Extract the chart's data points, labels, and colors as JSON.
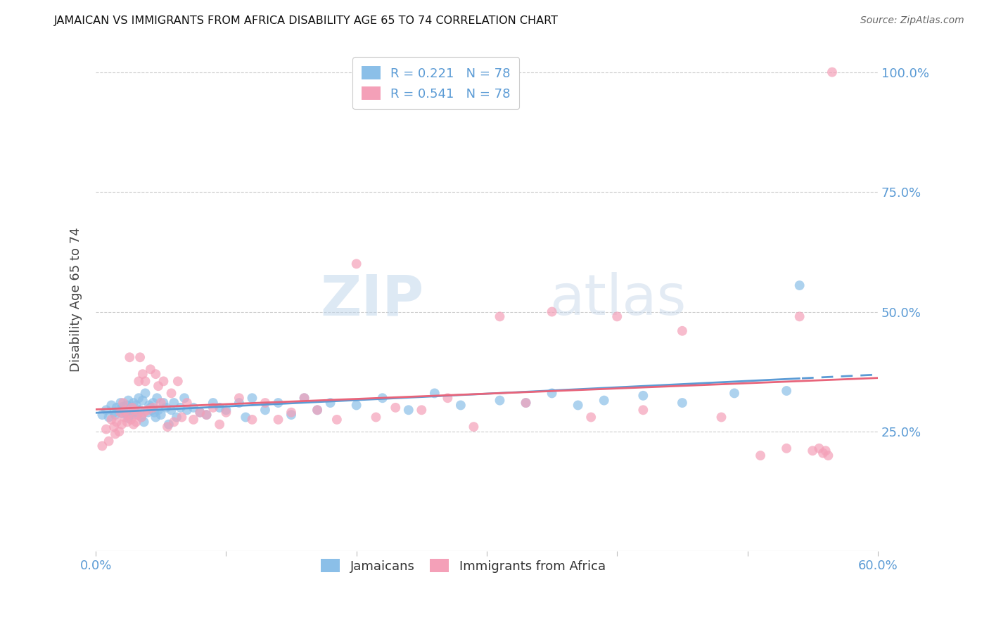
{
  "title": "JAMAICAN VS IMMIGRANTS FROM AFRICA DISABILITY AGE 65 TO 74 CORRELATION CHART",
  "source": "Source: ZipAtlas.com",
  "ylabel_label": "Disability Age 65 to 74",
  "x_min": 0.0,
  "x_max": 0.6,
  "y_min": 0.0,
  "y_max": 1.05,
  "x_ticks": [
    0.0,
    0.1,
    0.2,
    0.3,
    0.4,
    0.5,
    0.6
  ],
  "x_tick_labels": [
    "0.0%",
    "",
    "",
    "",
    "",
    "",
    "60.0%"
  ],
  "y_ticks": [
    0.25,
    0.5,
    0.75,
    1.0
  ],
  "y_tick_labels": [
    "25.0%",
    "50.0%",
    "75.0%",
    "100.0%"
  ],
  "blue_color": "#8BBFE8",
  "pink_color": "#F4A0B8",
  "blue_line_color": "#5B9BD5",
  "pink_line_color": "#E8647A",
  "watermark_zip": "ZIP",
  "watermark_atlas": "atlas",
  "blue_scatter_x": [
    0.005,
    0.008,
    0.01,
    0.012,
    0.014,
    0.015,
    0.016,
    0.018,
    0.019,
    0.02,
    0.021,
    0.022,
    0.023,
    0.024,
    0.025,
    0.025,
    0.026,
    0.027,
    0.028,
    0.029,
    0.03,
    0.031,
    0.032,
    0.033,
    0.034,
    0.035,
    0.036,
    0.037,
    0.038,
    0.04,
    0.041,
    0.042,
    0.043,
    0.044,
    0.045,
    0.046,
    0.047,
    0.048,
    0.05,
    0.052,
    0.054,
    0.056,
    0.058,
    0.06,
    0.062,
    0.065,
    0.068,
    0.07,
    0.075,
    0.08,
    0.085,
    0.09,
    0.095,
    0.1,
    0.11,
    0.115,
    0.12,
    0.13,
    0.14,
    0.15,
    0.16,
    0.17,
    0.18,
    0.2,
    0.22,
    0.24,
    0.26,
    0.28,
    0.31,
    0.33,
    0.35,
    0.37,
    0.39,
    0.42,
    0.45,
    0.49,
    0.53,
    0.54
  ],
  "blue_scatter_y": [
    0.285,
    0.295,
    0.28,
    0.305,
    0.29,
    0.285,
    0.3,
    0.295,
    0.31,
    0.288,
    0.302,
    0.295,
    0.288,
    0.305,
    0.278,
    0.315,
    0.295,
    0.285,
    0.3,
    0.31,
    0.29,
    0.305,
    0.285,
    0.32,
    0.295,
    0.28,
    0.315,
    0.27,
    0.33,
    0.29,
    0.305,
    0.3,
    0.295,
    0.31,
    0.29,
    0.28,
    0.32,
    0.295,
    0.285,
    0.31,
    0.3,
    0.265,
    0.295,
    0.31,
    0.28,
    0.3,
    0.32,
    0.295,
    0.3,
    0.29,
    0.285,
    0.31,
    0.3,
    0.295,
    0.31,
    0.28,
    0.32,
    0.295,
    0.31,
    0.285,
    0.32,
    0.295,
    0.31,
    0.305,
    0.32,
    0.295,
    0.33,
    0.305,
    0.315,
    0.31,
    0.33,
    0.305,
    0.315,
    0.325,
    0.31,
    0.33,
    0.335,
    0.555
  ],
  "pink_scatter_x": [
    0.005,
    0.008,
    0.01,
    0.012,
    0.014,
    0.015,
    0.016,
    0.018,
    0.019,
    0.02,
    0.021,
    0.022,
    0.023,
    0.024,
    0.025,
    0.026,
    0.027,
    0.028,
    0.029,
    0.03,
    0.031,
    0.032,
    0.033,
    0.034,
    0.035,
    0.036,
    0.037,
    0.038,
    0.04,
    0.042,
    0.044,
    0.046,
    0.048,
    0.05,
    0.052,
    0.055,
    0.058,
    0.06,
    0.063,
    0.066,
    0.07,
    0.075,
    0.08,
    0.085,
    0.09,
    0.095,
    0.1,
    0.11,
    0.12,
    0.13,
    0.14,
    0.15,
    0.16,
    0.17,
    0.185,
    0.2,
    0.215,
    0.23,
    0.25,
    0.27,
    0.29,
    0.31,
    0.33,
    0.35,
    0.38,
    0.4,
    0.42,
    0.45,
    0.48,
    0.51,
    0.53,
    0.54,
    0.55,
    0.555,
    0.558,
    0.56,
    0.562,
    0.565
  ],
  "pink_scatter_y": [
    0.22,
    0.255,
    0.23,
    0.275,
    0.26,
    0.245,
    0.27,
    0.25,
    0.29,
    0.265,
    0.31,
    0.28,
    0.295,
    0.27,
    0.285,
    0.405,
    0.275,
    0.3,
    0.265,
    0.295,
    0.27,
    0.285,
    0.355,
    0.405,
    0.28,
    0.37,
    0.29,
    0.355,
    0.295,
    0.38,
    0.3,
    0.37,
    0.345,
    0.31,
    0.355,
    0.26,
    0.33,
    0.27,
    0.355,
    0.28,
    0.31,
    0.275,
    0.29,
    0.285,
    0.3,
    0.265,
    0.29,
    0.32,
    0.275,
    0.31,
    0.275,
    0.29,
    0.32,
    0.295,
    0.275,
    0.6,
    0.28,
    0.3,
    0.295,
    0.32,
    0.26,
    0.49,
    0.31,
    0.5,
    0.28,
    0.49,
    0.295,
    0.46,
    0.28,
    0.2,
    0.215,
    0.49,
    0.21,
    0.215,
    0.205,
    0.21,
    0.2,
    1.0
  ]
}
